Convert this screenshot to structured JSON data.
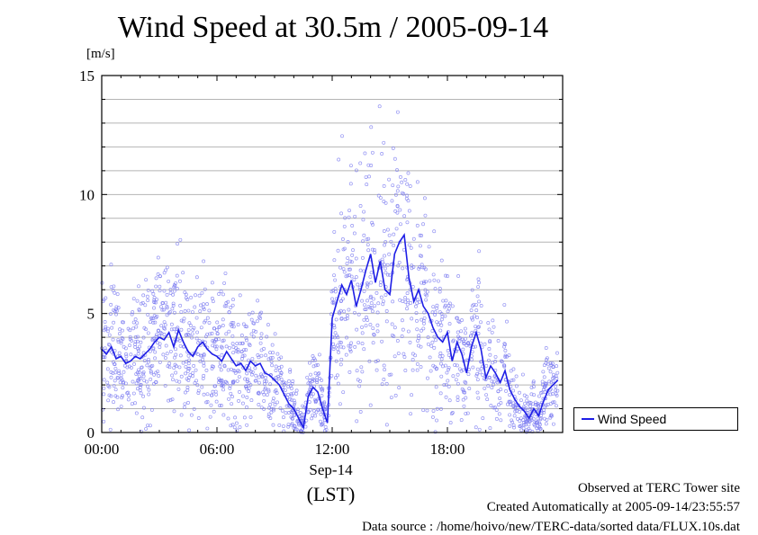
{
  "chart_data": {
    "type": "line",
    "title": "Wind Speed at 30.5m / 2005-09-14",
    "ylabel": "[m/s]",
    "xlabel": "(LST)",
    "date_label": "Sep-14",
    "ylim": [
      0,
      15
    ],
    "xlim_hours": [
      0,
      24
    ],
    "y_ticks": [
      "0",
      "5",
      "10",
      "15"
    ],
    "x_ticks": [
      "00:00",
      "06:00",
      "12:00",
      "18:00"
    ],
    "x_tick_hours": [
      0,
      6,
      12,
      18
    ],
    "grid": true,
    "legend_position": "right",
    "series": [
      {
        "name": "Wind Speed",
        "color": "#1e1ee6",
        "point_color": "#7a7af0",
        "x": [
          0.0,
          0.25,
          0.5,
          0.75,
          1.0,
          1.25,
          1.5,
          1.75,
          2.0,
          2.25,
          2.5,
          2.75,
          3.0,
          3.25,
          3.5,
          3.75,
          4.0,
          4.25,
          4.5,
          4.75,
          5.0,
          5.25,
          5.5,
          5.75,
          6.0,
          6.25,
          6.5,
          6.75,
          7.0,
          7.25,
          7.5,
          7.75,
          8.0,
          8.25,
          8.5,
          8.75,
          9.0,
          9.25,
          9.5,
          9.75,
          10.0,
          10.25,
          10.5,
          10.75,
          11.0,
          11.25,
          11.5,
          11.75,
          12.0,
          12.25,
          12.5,
          12.75,
          13.0,
          13.25,
          13.5,
          13.75,
          14.0,
          14.25,
          14.5,
          14.75,
          15.0,
          15.25,
          15.5,
          15.75,
          16.0,
          16.25,
          16.5,
          16.75,
          17.0,
          17.25,
          17.5,
          17.75,
          18.0,
          18.25,
          18.5,
          18.75,
          19.0,
          19.25,
          19.5,
          19.75,
          20.0,
          20.25,
          20.5,
          20.75,
          21.0,
          21.25,
          21.5,
          21.75,
          22.0,
          22.25,
          22.5,
          22.75,
          23.0,
          23.25,
          23.5,
          23.75
        ],
        "y": [
          3.5,
          3.3,
          3.6,
          3.1,
          3.2,
          2.9,
          3.0,
          3.2,
          3.1,
          3.3,
          3.5,
          3.8,
          4.0,
          3.9,
          4.2,
          3.6,
          4.3,
          3.8,
          3.4,
          3.2,
          3.6,
          3.8,
          3.5,
          3.3,
          3.2,
          3.0,
          3.4,
          3.1,
          2.8,
          2.9,
          2.6,
          3.0,
          2.8,
          2.9,
          2.5,
          2.4,
          2.2,
          2.0,
          1.6,
          1.2,
          1.0,
          0.6,
          0.2,
          1.5,
          1.9,
          1.7,
          1.0,
          0.4,
          4.8,
          5.5,
          6.2,
          5.8,
          6.4,
          5.3,
          6.0,
          6.8,
          7.5,
          6.3,
          7.2,
          6.0,
          5.8,
          7.5,
          8.0,
          8.3,
          6.5,
          5.5,
          6.0,
          5.3,
          5.0,
          4.4,
          4.0,
          3.8,
          4.2,
          3.0,
          3.8,
          3.3,
          2.5,
          3.6,
          4.2,
          3.5,
          2.3,
          2.8,
          2.5,
          2.1,
          2.6,
          1.8,
          1.4,
          1.1,
          0.9,
          0.6,
          1.0,
          0.7,
          1.3,
          1.8,
          2.0,
          2.2
        ]
      }
    ],
    "footer": {
      "line1": "Observed at TERC Tower site",
      "line2": "Created Automatically at 2005-09-14/23:55:57",
      "line3": "Data source : /home/hoivo/new/TERC-data/sorted  data/FLUX.10s.dat"
    }
  }
}
